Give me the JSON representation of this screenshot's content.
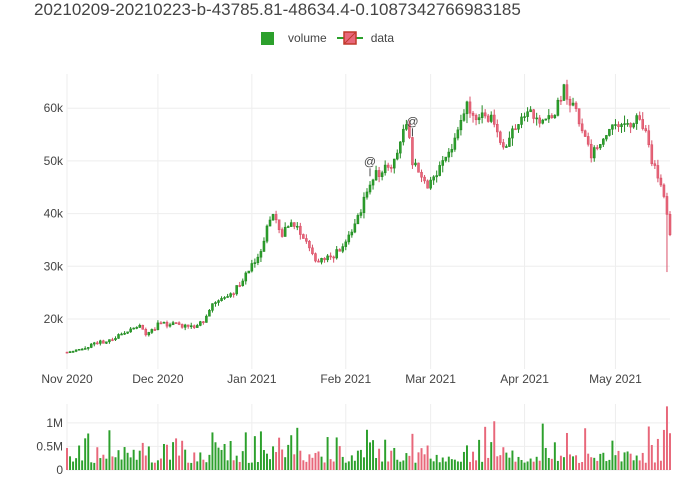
{
  "chart_data": {
    "type": "candlestick",
    "title": "20210209-20210223-b-43785.81-48634.4-0.1087342766983185",
    "legend": {
      "placement": "top-center",
      "entries": [
        "volume",
        "data"
      ]
    },
    "colors": {
      "increasing": "#2ca02c",
      "decreasing": "#e8677a",
      "volume_increasing": "#2ca02c",
      "volume_decreasing": "#e8677a",
      "grid": "#eeeeee"
    },
    "x_ticks": [
      "Nov 2020",
      "Dec 2020",
      "Jan 2021",
      "Feb 2021",
      "Mar 2021",
      "Apr 2021",
      "May 2021"
    ],
    "x_range": [
      "2020-11-01",
      "2021-05-19"
    ],
    "price_axis": {
      "ticks": [
        "20k",
        "30k",
        "40k",
        "50k",
        "60k"
      ],
      "range": [
        10500,
        66500
      ],
      "grid": true
    },
    "volume_axis": {
      "ticks": [
        "0",
        "0.5M",
        "1M"
      ],
      "range": [
        0,
        1400000
      ],
      "grid": true
    },
    "annotations": [
      {
        "text": "@",
        "date": "2021-02-09",
        "price": 48600
      },
      {
        "text": "@",
        "date": "2021-02-23",
        "price": 56200
      }
    ],
    "price_path": [
      [
        "2020-11-01",
        13700
      ],
      [
        "2020-11-05",
        14100
      ],
      [
        "2020-11-10",
        15200
      ],
      [
        "2020-11-15",
        15800
      ],
      [
        "2020-11-20",
        17500
      ],
      [
        "2020-11-25",
        18800
      ],
      [
        "2020-11-27",
        17200
      ],
      [
        "2020-12-01",
        18800
      ],
      [
        "2020-12-06",
        19200
      ],
      [
        "2020-12-11",
        18300
      ],
      [
        "2020-12-16",
        19400
      ],
      [
        "2020-12-20",
        23500
      ],
      [
        "2020-12-25",
        24500
      ],
      [
        "2020-12-30",
        28500
      ],
      [
        "2021-01-03",
        32000
      ],
      [
        "2021-01-08",
        40000
      ],
      [
        "2021-01-11",
        36000
      ],
      [
        "2021-01-14",
        38500
      ],
      [
        "2021-01-18",
        35500
      ],
      [
        "2021-01-22",
        31000
      ],
      [
        "2021-01-27",
        31500
      ],
      [
        "2021-01-31",
        34000
      ],
      [
        "2021-02-04",
        37500
      ],
      [
        "2021-02-08",
        44500
      ],
      [
        "2021-02-11",
        47500
      ],
      [
        "2021-02-16",
        49000
      ],
      [
        "2021-02-21",
        57000
      ],
      [
        "2021-02-23",
        50000
      ],
      [
        "2021-02-28",
        45500
      ],
      [
        "2021-03-04",
        49000
      ],
      [
        "2021-03-09",
        54000
      ],
      [
        "2021-03-13",
        60000
      ],
      [
        "2021-03-17",
        57500
      ],
      [
        "2021-03-21",
        58000
      ],
      [
        "2021-03-25",
        52000
      ],
      [
        "2021-03-29",
        57000
      ],
      [
        "2021-04-02",
        59000
      ],
      [
        "2021-04-07",
        57500
      ],
      [
        "2021-04-11",
        59500
      ],
      [
        "2021-04-14",
        63500
      ],
      [
        "2021-04-17",
        60500
      ],
      [
        "2021-04-20",
        56000
      ],
      [
        "2021-04-23",
        51000
      ],
      [
        "2021-04-26",
        53000
      ],
      [
        "2021-04-30",
        57500
      ],
      [
        "2021-05-04",
        56000
      ],
      [
        "2021-05-08",
        58000
      ],
      [
        "2021-05-11",
        56500
      ],
      [
        "2021-05-13",
        50000
      ],
      [
        "2021-05-15",
        47500
      ],
      [
        "2021-05-17",
        43500
      ],
      [
        "2021-05-19",
        38000
      ]
    ],
    "volume_range": [
      150000,
      900000
    ],
    "volume_spikes": [
      [
        "2021-05-17",
        850000
      ],
      [
        "2021-05-18",
        1350000
      ],
      [
        "2021-05-19",
        780000
      ]
    ]
  }
}
